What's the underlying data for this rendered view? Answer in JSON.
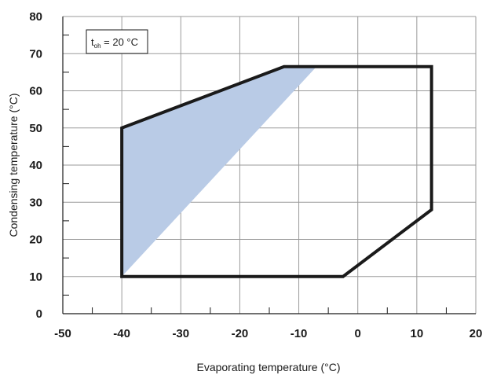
{
  "chart_data": {
    "type": "area",
    "xlabel": "Evaporating temperature (°C)",
    "ylabel": "Condensing temperature (°C)",
    "xlim": [
      -50,
      20
    ],
    "ylim": [
      0,
      80
    ],
    "x_ticks": [
      -50,
      -40,
      -30,
      -20,
      -10,
      0,
      10,
      20
    ],
    "y_ticks": [
      0,
      10,
      20,
      30,
      40,
      50,
      60,
      70,
      80
    ],
    "x_minor_step": 5,
    "y_minor_step": 5,
    "grid": true,
    "legend_box": {
      "symbol": "t",
      "subscript": "oh",
      "text": " = 20 °C",
      "placement": "top-left"
    },
    "envelope": {
      "color": "#1a1a1a",
      "points": [
        {
          "x": -40,
          "y": 10
        },
        {
          "x": -40,
          "y": 50
        },
        {
          "x": -12.5,
          "y": 66.5
        },
        {
          "x": 12.5,
          "y": 66.5
        },
        {
          "x": 12.5,
          "y": 28
        },
        {
          "x": -2.5,
          "y": 10
        }
      ]
    },
    "shaded_region": {
      "color": "#b9cbe6",
      "points": [
        {
          "x": -40,
          "y": 10
        },
        {
          "x": -40,
          "y": 50
        },
        {
          "x": -12.5,
          "y": 66.5
        },
        {
          "x": -7,
          "y": 66.5
        }
      ]
    }
  }
}
